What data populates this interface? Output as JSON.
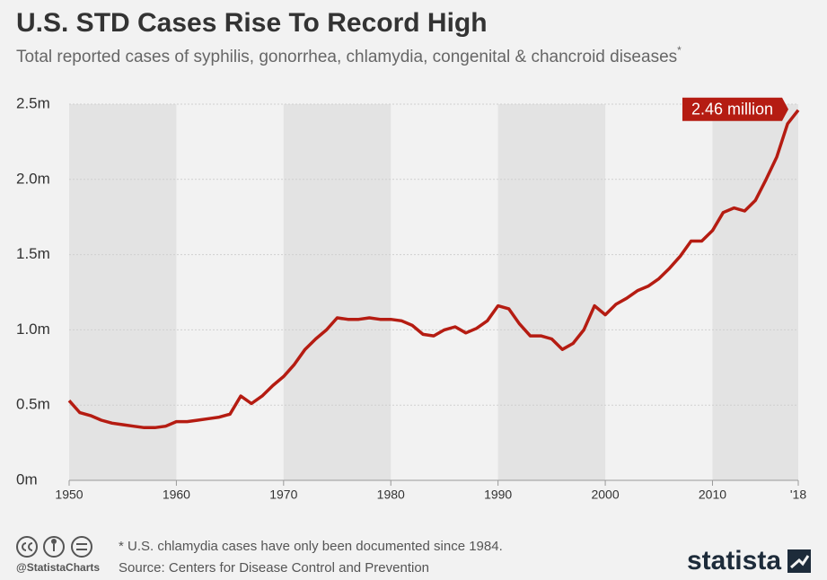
{
  "chart_data": {
    "type": "line",
    "title": "U.S. STD Cases Rise To Record High",
    "subtitle": "Total reported cases of syphilis, gonorrhea, chlamydia, congenital & chancroid diseases",
    "subtitle_marker": "*",
    "annotation": "2.46 million",
    "footnote": "* U.S. chlamydia cases have only been documented since 1984.",
    "source": "Source: Centers for Disease Control and Prevention",
    "handle": "@StatistaCharts",
    "brand": "statista",
    "x": [
      1950,
      1951,
      1952,
      1953,
      1954,
      1955,
      1956,
      1957,
      1958,
      1959,
      1960,
      1961,
      1962,
      1963,
      1964,
      1965,
      1966,
      1967,
      1968,
      1969,
      1970,
      1971,
      1972,
      1973,
      1974,
      1975,
      1976,
      1977,
      1978,
      1979,
      1980,
      1981,
      1982,
      1983,
      1984,
      1985,
      1986,
      1987,
      1988,
      1989,
      1990,
      1991,
      1992,
      1993,
      1994,
      1995,
      1996,
      1997,
      1998,
      1999,
      2000,
      2001,
      2002,
      2003,
      2004,
      2005,
      2006,
      2007,
      2008,
      2009,
      2010,
      2011,
      2012,
      2013,
      2014,
      2015,
      2016,
      2017,
      2018
    ],
    "series": [
      {
        "color": "#b51c12",
        "values": [
          0.53,
          0.45,
          0.43,
          0.4,
          0.38,
          0.37,
          0.36,
          0.35,
          0.35,
          0.36,
          0.39,
          0.39,
          0.4,
          0.41,
          0.42,
          0.44,
          0.56,
          0.51,
          0.56,
          0.63,
          0.69,
          0.77,
          0.87,
          0.94,
          1.0,
          1.08,
          1.07,
          1.07,
          1.08,
          1.07,
          1.07,
          1.06,
          1.03,
          0.97,
          0.96,
          1.0,
          1.02,
          0.98,
          1.01,
          1.06,
          1.16,
          1.14,
          1.04,
          0.96,
          0.96,
          0.94,
          0.87,
          0.91,
          1.0,
          1.16,
          1.1,
          1.17,
          1.21,
          1.26,
          1.29,
          1.34,
          1.41,
          1.49,
          1.59,
          1.59,
          1.66,
          1.78,
          1.81,
          1.79,
          1.86,
          2.0,
          2.15,
          2.37,
          2.46
        ]
      }
    ],
    "xlim": [
      1950,
      2018
    ],
    "xticks": [
      1950,
      1960,
      1970,
      1980,
      1990,
      2000,
      2010,
      {
        "value": 2018,
        "label": "'18"
      }
    ],
    "ylim": [
      0,
      2.5
    ],
    "yticks": [
      {
        "value": 0,
        "label": "0m"
      },
      {
        "value": 0.5,
        "label": "0.5m"
      },
      {
        "value": 1,
        "label": "1.0m"
      },
      {
        "value": 1.5,
        "label": "1.5m"
      },
      {
        "value": 2,
        "label": "2.0m"
      },
      {
        "value": 2.5,
        "label": "2.5m"
      }
    ],
    "grid": true,
    "band_color": "#e3e3e3"
  }
}
